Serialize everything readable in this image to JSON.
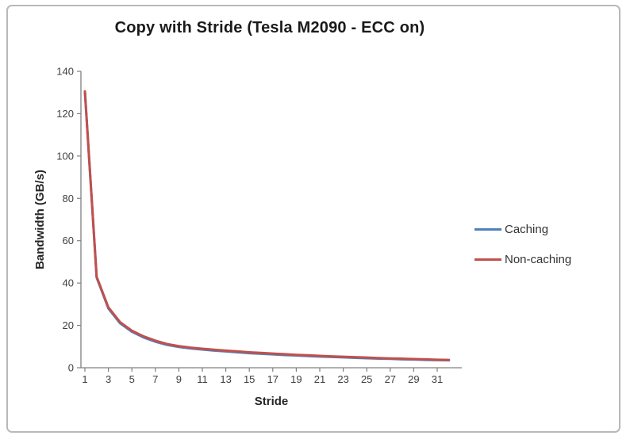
{
  "chart_data": {
    "type": "line",
    "title": "Copy with Stride (Tesla M2090 - ECC on)",
    "xlabel": "Stride",
    "ylabel": "Bandwidth (GB/s)",
    "ylim": [
      0,
      140
    ],
    "xlim": [
      1,
      32
    ],
    "y_ticks": [
      0,
      20,
      40,
      60,
      80,
      100,
      120,
      140
    ],
    "x_ticks": [
      1,
      3,
      5,
      7,
      9,
      11,
      13,
      15,
      17,
      19,
      21,
      23,
      25,
      27,
      29,
      31
    ],
    "grid": false,
    "legend_position": "right",
    "x": [
      1,
      2,
      3,
      4,
      5,
      6,
      7,
      8,
      9,
      10,
      11,
      12,
      13,
      14,
      15,
      16,
      17,
      18,
      19,
      20,
      21,
      22,
      23,
      24,
      25,
      26,
      27,
      28,
      29,
      30,
      31,
      32
    ],
    "series": [
      {
        "name": "Caching",
        "color": "#4F81BD",
        "values": [
          130.5,
          42.6,
          28.0,
          21.0,
          17.0,
          14.3,
          12.3,
          10.8,
          9.8,
          9.1,
          8.6,
          8.1,
          7.7,
          7.3,
          6.9,
          6.6,
          6.3,
          6.0,
          5.8,
          5.5,
          5.3,
          5.1,
          4.9,
          4.7,
          4.5,
          4.3,
          4.2,
          4.0,
          3.9,
          3.7,
          3.6,
          3.5
        ]
      },
      {
        "name": "Non-caching",
        "color": "#C0504D",
        "values": [
          130.5,
          43.0,
          28.5,
          21.5,
          17.5,
          14.8,
          12.8,
          11.2,
          10.2,
          9.5,
          9.0,
          8.5,
          8.1,
          7.7,
          7.3,
          7.0,
          6.7,
          6.4,
          6.1,
          5.9,
          5.6,
          5.4,
          5.2,
          5.0,
          4.8,
          4.6,
          4.4,
          4.3,
          4.1,
          4.0,
          3.8,
          3.7
        ]
      }
    ],
    "axis_color": "#808080",
    "tick_label_color": "#404040"
  }
}
